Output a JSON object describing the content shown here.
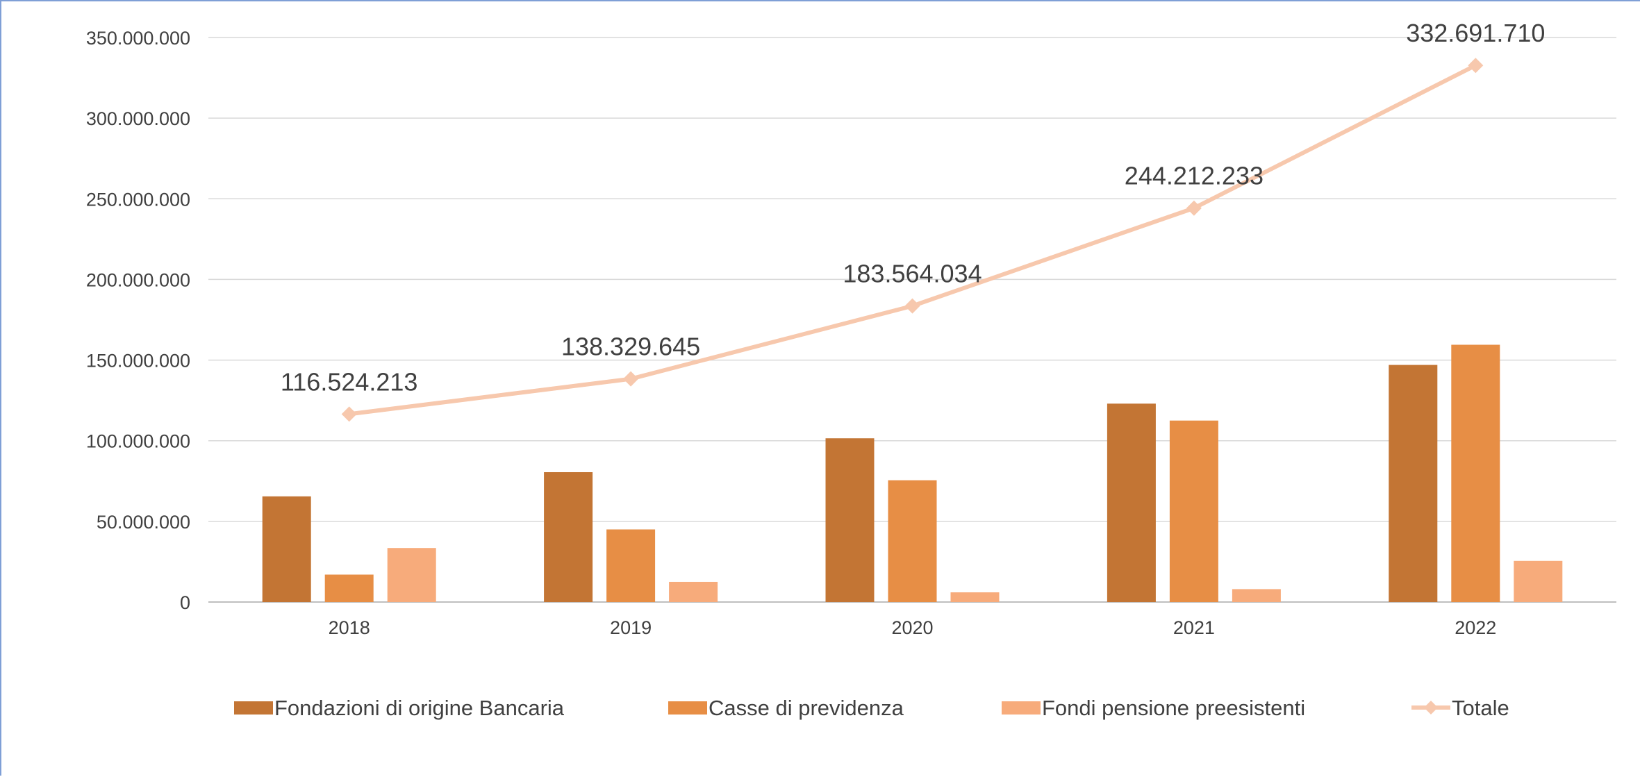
{
  "chart_data": {
    "type": "bar",
    "categories": [
      "2018",
      "2019",
      "2020",
      "2021",
      "2022"
    ],
    "series": [
      {
        "name": "Fondazioni di origine Bancaria",
        "type": "bar",
        "color": "#c37534",
        "values": [
          65500000,
          80500000,
          101500000,
          123000000,
          147000000
        ]
      },
      {
        "name": "Casse di previdenza",
        "type": "bar",
        "color": "#e78e45",
        "values": [
          17000000,
          45000000,
          75500000,
          112500000,
          159500000
        ]
      },
      {
        "name": "Fondi pensione preesistenti",
        "type": "bar",
        "color": "#f7ab7b",
        "values": [
          33500000,
          12500000,
          6000000,
          8000000,
          25500000
        ]
      },
      {
        "name": "Totale",
        "type": "line",
        "color": "#f7c8ad",
        "values": [
          116524213,
          138329645,
          183564034,
          244212233,
          332691710
        ],
        "data_labels": [
          "116.524.213",
          "138.329.645",
          "183.564.034",
          "244.212.233",
          "332.691.710"
        ]
      }
    ],
    "y_ticks": [
      0,
      50000000,
      100000000,
      150000000,
      200000000,
      250000000,
      300000000,
      350000000
    ],
    "y_tick_labels": [
      "0",
      "50.000.000",
      "100.000.000",
      "150.000.000",
      "200.000.000",
      "250.000.000",
      "300.000.000",
      "350.000.000"
    ],
    "ylim": [
      0,
      350000000
    ],
    "title": "",
    "xlabel": "",
    "ylabel": "",
    "grid": true,
    "legend_position": "bottom",
    "gridline_color": "#d9d9d9",
    "axis_color": "#bfbfbf",
    "frame_color": "#7f9fd6"
  }
}
